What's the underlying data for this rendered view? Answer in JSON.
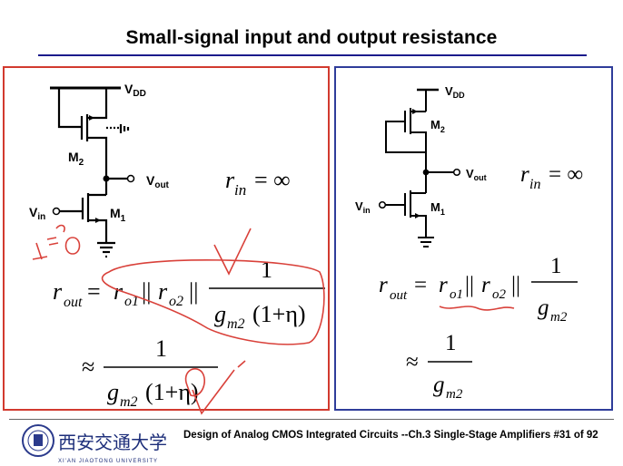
{
  "slide": {
    "title": "Small-signal input and output resistance",
    "footer": "Design of Analog CMOS Integrated Circuits  --Ch.3 Single-Stage Amplifiers  #31 of 92",
    "university_name_en": "XI'AN JIAOTONG UNIVERSITY"
  },
  "left": {
    "labels": {
      "vdd": "V",
      "vdd_sub": "DD",
      "m2": "M",
      "m2_sub": "2",
      "m1": "M",
      "m1_sub": "1",
      "vout": "V",
      "vout_sub": "out",
      "vin": "V",
      "vin_sub": "in"
    },
    "rin": {
      "r": "r",
      "sub": "in",
      "eq": "= ∞"
    },
    "rout": {
      "r": "r",
      "sub": "out",
      "eq": "=",
      "ro1": "r",
      "ro1_sub": "o1",
      "ro2": "r",
      "ro2_sub": "o2",
      "par": "||",
      "num": "1",
      "den": "g",
      "den_sub": "m2",
      "den_rest": "(1+η)"
    },
    "approx": {
      "sym": "≈",
      "num": "1",
      "den": "g",
      "den_sub": "m2",
      "den_rest": "(1+η)"
    }
  },
  "right": {
    "labels": {
      "vdd": "V",
      "vdd_sub": "DD",
      "m2": "M",
      "m2_sub": "2",
      "m1": "M",
      "m1_sub": "1",
      "vout": "V",
      "vout_sub": "out",
      "vin": "V",
      "vin_sub": "in"
    },
    "rin": {
      "r": "r",
      "sub": "in",
      "eq": "= ∞"
    },
    "rout": {
      "r": "r",
      "sub": "out",
      "eq": "=",
      "ro1": "r",
      "ro1_sub": "o1",
      "ro2": "r",
      "ro2_sub": "o2",
      "par": "||",
      "num": "1",
      "den": "g",
      "den_sub": "m2"
    },
    "approx": {
      "sym": "≈",
      "num": "1",
      "den": "g",
      "den_sub": "m2"
    }
  },
  "colors": {
    "left_border": "#d23a2f",
    "right_border": "#2f3d9a",
    "title_rule": "#1a1a8c",
    "annotation": "#d9413a"
  }
}
